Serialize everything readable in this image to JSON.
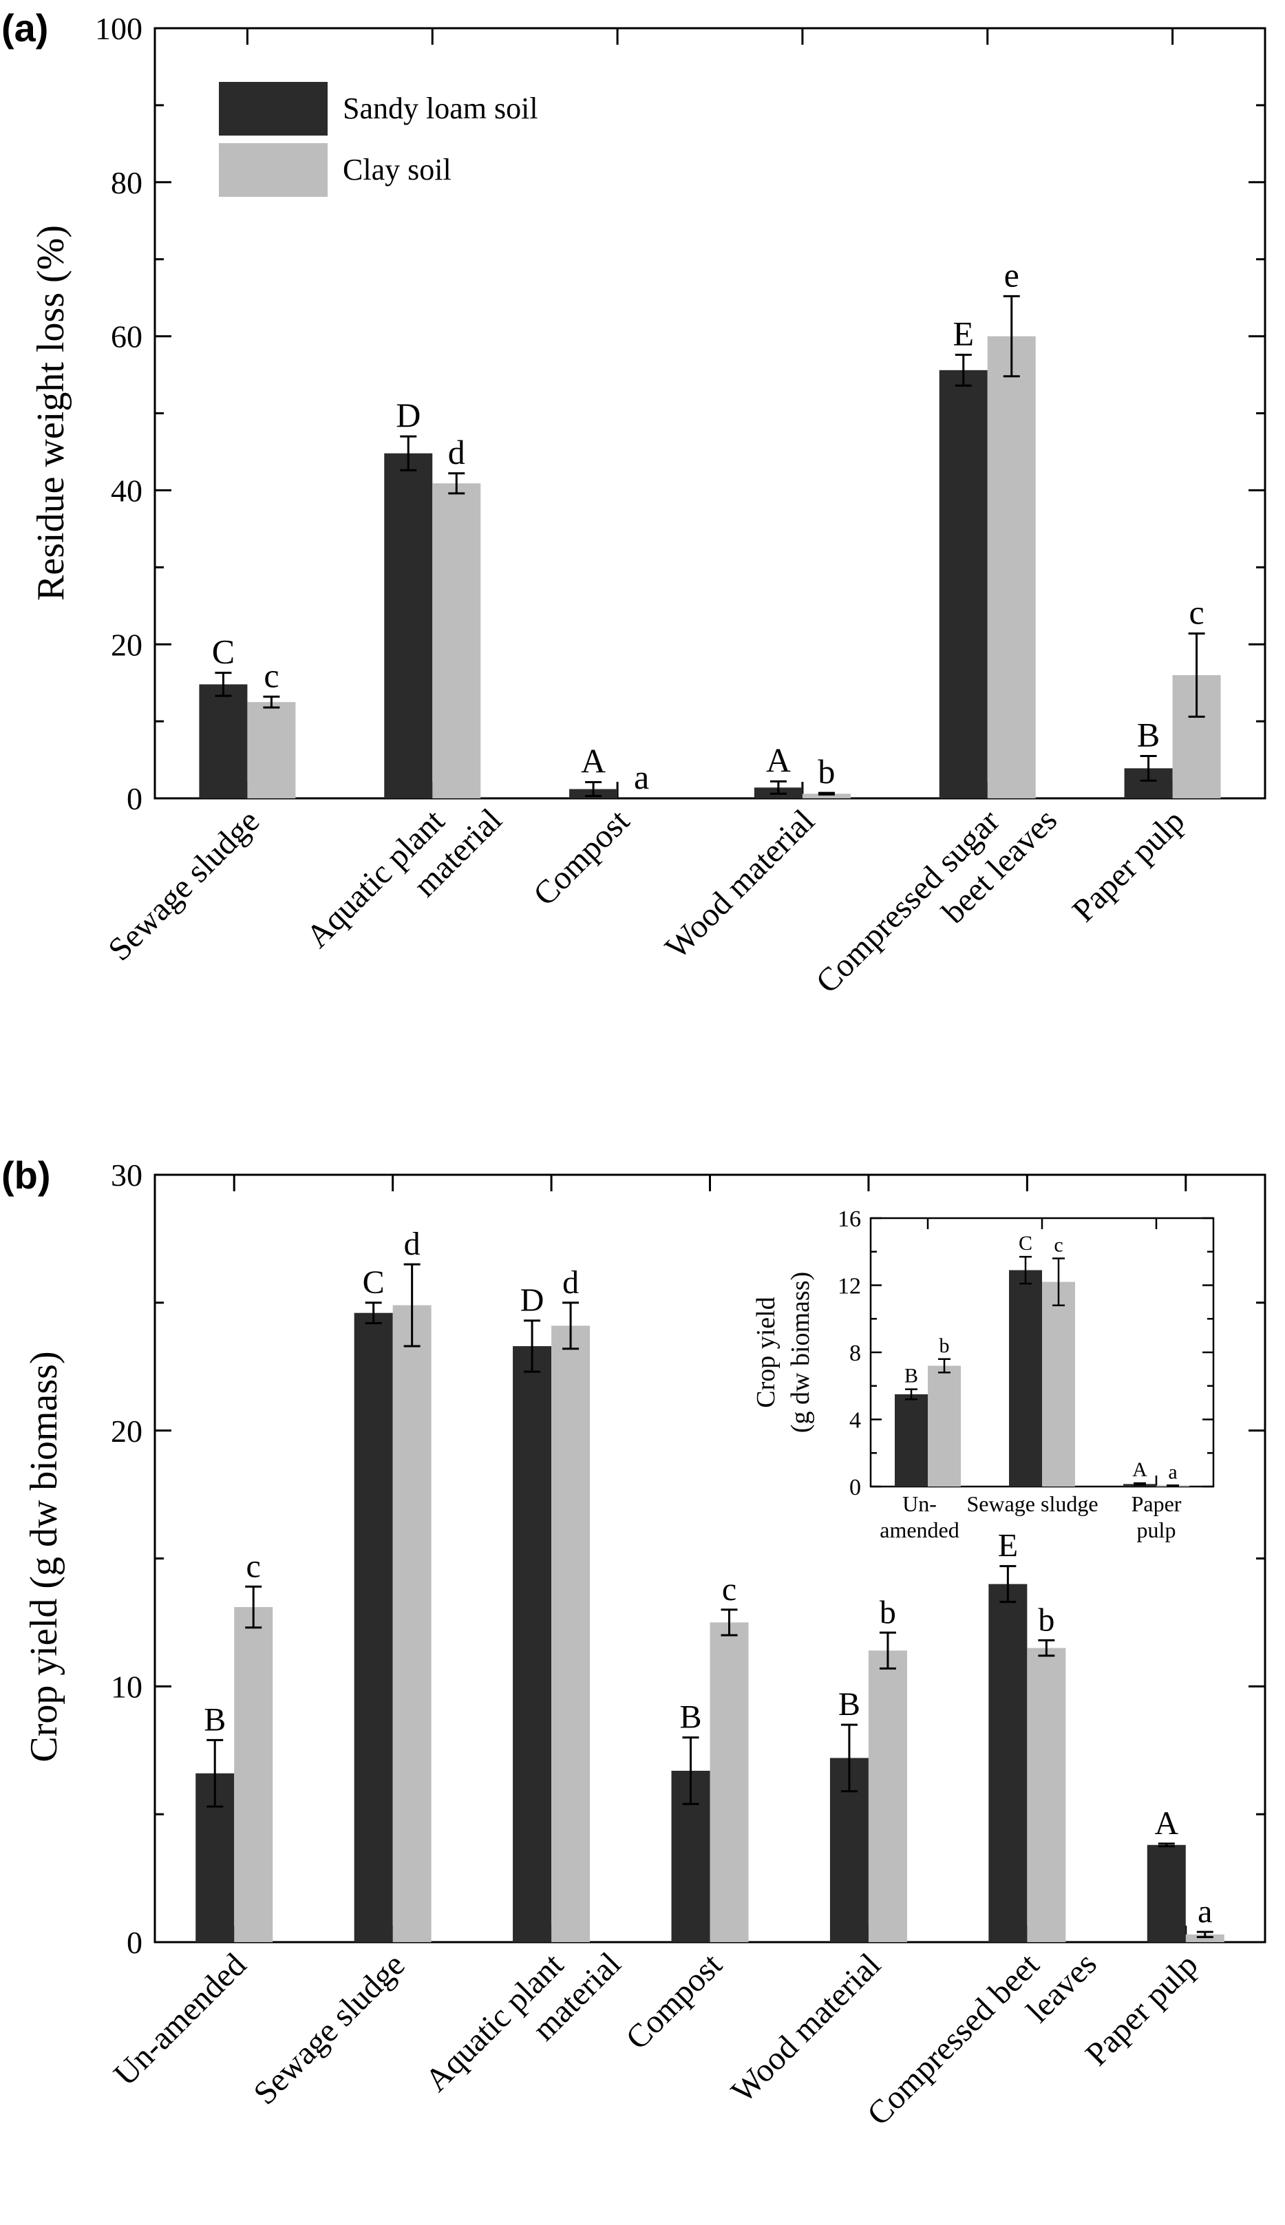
{
  "colors": {
    "sandy": "#2b2b2b",
    "clay": "#bdbdbd",
    "axis": "#000000"
  },
  "chart_data": [
    {
      "panel_label": "(a)",
      "type": "bar",
      "ylabel": "Residue weight loss (%)",
      "xlabel": "",
      "ylim": [
        0,
        100
      ],
      "yticks": [
        "0",
        "20",
        "40",
        "60",
        "80",
        "100"
      ],
      "yminor_step": 10,
      "legend_position": "top-left",
      "categories": [
        [
          "Sewage sludge"
        ],
        [
          "Aquatic plant",
          "material"
        ],
        [
          "Compost"
        ],
        [
          "Wood material"
        ],
        [
          "Compressed sugar",
          "beet leaves"
        ],
        [
          "Paper pulp"
        ]
      ],
      "series": [
        {
          "name": "Sandy loam soil",
          "values": [
            14.8,
            44.8,
            1.2,
            1.4,
            55.6,
            3.9
          ],
          "errors": [
            1.5,
            2.2,
            0.9,
            0.8,
            2.0,
            1.6
          ],
          "letters": [
            "C",
            "D",
            "A",
            "A",
            "E",
            "B"
          ]
        },
        {
          "name": "Clay soil",
          "values": [
            12.5,
            40.9,
            0.0,
            0.6,
            60.0,
            16.0
          ],
          "errors": [
            0.7,
            1.3,
            0.0,
            0.1,
            5.2,
            5.4
          ],
          "letters": [
            "c",
            "d",
            "a",
            "b",
            "e",
            "c"
          ]
        }
      ]
    },
    {
      "panel_label": "(b)",
      "type": "bar",
      "ylabel": "Crop yield (g dw biomass)",
      "xlabel": "",
      "ylim": [
        0,
        30
      ],
      "yticks": [
        "0",
        "10",
        "20",
        "30"
      ],
      "yminor_step": 5,
      "categories": [
        [
          "Un-amended"
        ],
        [
          "Sewage sludge"
        ],
        [
          "Aquatic plant",
          "material"
        ],
        [
          "Compost"
        ],
        [
          "Wood material"
        ],
        [
          "Compressed beet",
          "leaves"
        ],
        [
          "Paper pulp"
        ]
      ],
      "series": [
        {
          "name": "Sandy loam soil",
          "values": [
            6.6,
            24.6,
            23.3,
            6.7,
            7.2,
            14.0,
            3.8
          ],
          "errors": [
            1.3,
            0.4,
            1.0,
            1.3,
            1.3,
            0.7,
            0.05
          ],
          "letters": [
            "B",
            "C",
            "D",
            "B",
            "B",
            "E",
            "A"
          ]
        },
        {
          "name": "Clay soil",
          "values": [
            13.1,
            24.9,
            24.1,
            12.5,
            11.4,
            11.5,
            0.3
          ],
          "errors": [
            0.8,
            1.6,
            0.9,
            0.5,
            0.7,
            0.3,
            0.1
          ],
          "letters": [
            "c",
            "d",
            "d",
            "c",
            "b",
            "b",
            "a"
          ]
        }
      ]
    },
    {
      "panel_label": "",
      "type": "bar",
      "inset": true,
      "ylabel": [
        "Crop yield",
        "(g dw biomass)"
      ],
      "xlabel": "",
      "ylim": [
        0,
        16
      ],
      "yticks": [
        "0",
        "4",
        "8",
        "12",
        "16"
      ],
      "yminor_step": 2,
      "categories": [
        [
          "Un-",
          "amended"
        ],
        [
          "Sewage sludge"
        ],
        [
          "Paper",
          "pulp"
        ]
      ],
      "series": [
        {
          "name": "Sandy loam soil",
          "values": [
            5.5,
            12.9,
            0.15
          ],
          "errors": [
            0.3,
            0.8,
            0.05
          ],
          "letters": [
            "B",
            "C",
            "A"
          ]
        },
        {
          "name": "Clay soil",
          "values": [
            7.2,
            12.2,
            0.05
          ],
          "errors": [
            0.4,
            1.4,
            0.02
          ],
          "letters": [
            "b",
            "c",
            "a"
          ]
        }
      ]
    }
  ]
}
